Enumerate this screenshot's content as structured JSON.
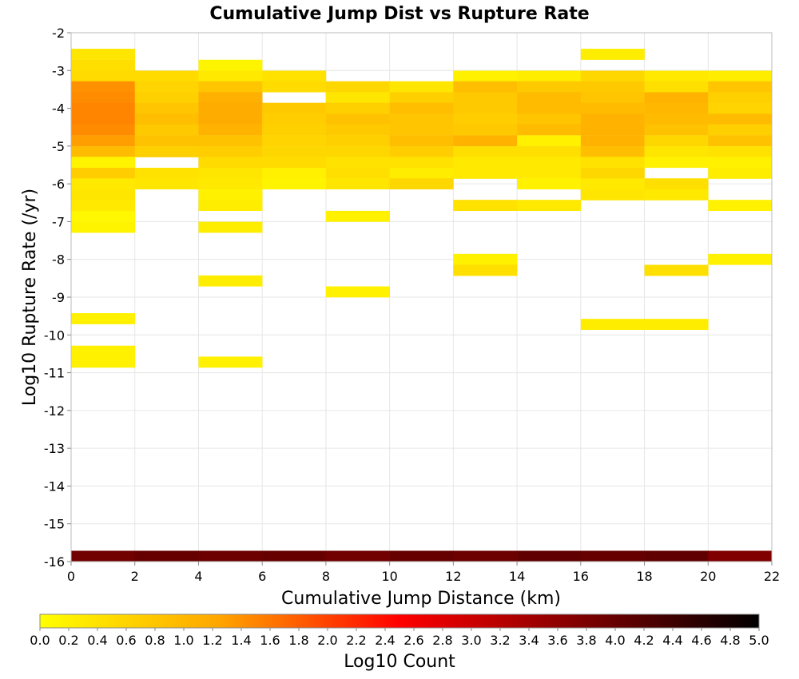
{
  "chart_data": {
    "type": "heatmap",
    "title": "Cumulative Jump Dist vs Rupture Rate",
    "xlabel": "Cumulative Jump Distance (km)",
    "ylabel": "Log10 Rupture Rate (/yr)",
    "xlim": [
      0,
      22
    ],
    "ylim": [
      -16,
      -2
    ],
    "x_ticks": [
      "0",
      "2",
      "4",
      "6",
      "8",
      "10",
      "12",
      "14",
      "16",
      "18",
      "20",
      "22"
    ],
    "y_ticks": [
      "-2",
      "-3",
      "-4",
      "-5",
      "-6",
      "-7",
      "-8",
      "-9",
      "-10",
      "-11",
      "-12",
      "-13",
      "-14",
      "-15",
      "-16"
    ],
    "grid": true,
    "x_bin_width": 2,
    "y_bin_height": 0.286,
    "colorbar": {
      "label": "Log10 Count",
      "range": [
        0.0,
        5.0
      ],
      "ticks": [
        "0.0",
        "0.2",
        "0.4",
        "0.6",
        "0.8",
        "1.0",
        "1.2",
        "1.4",
        "1.6",
        "1.8",
        "2.0",
        "2.2",
        "2.4",
        "2.6",
        "2.8",
        "3.0",
        "3.2",
        "3.4",
        "3.6",
        "3.8",
        "4.0",
        "4.2",
        "4.4",
        "4.6",
        "4.8",
        "5.0"
      ],
      "colors": [
        "#ffff00",
        "#ffa500",
        "#ff0000",
        "#800000",
        "#000000"
      ]
    },
    "cells": [
      {
        "x": 0,
        "y": -2.71,
        "v": 0.35
      },
      {
        "x": 0,
        "y": -3.0,
        "v": 0.45
      },
      {
        "x": 0,
        "y": -3.29,
        "v": 0.5
      },
      {
        "x": 0,
        "y": -3.57,
        "v": 1.4
      },
      {
        "x": 0,
        "y": -3.86,
        "v": 1.45
      },
      {
        "x": 0,
        "y": -4.14,
        "v": 1.5
      },
      {
        "x": 0,
        "y": -4.43,
        "v": 1.5
      },
      {
        "x": 0,
        "y": -4.71,
        "v": 1.45
      },
      {
        "x": 0,
        "y": -5.0,
        "v": 1.3
      },
      {
        "x": 0,
        "y": -5.29,
        "v": 0.95
      },
      {
        "x": 0,
        "y": -5.57,
        "v": 0.15
      },
      {
        "x": 0,
        "y": -5.86,
        "v": 0.7
      },
      {
        "x": 0,
        "y": -6.14,
        "v": 0.3
      },
      {
        "x": 0,
        "y": -6.43,
        "v": 0.35
      },
      {
        "x": 0,
        "y": -6.71,
        "v": 0.3
      },
      {
        "x": 0,
        "y": -7.0,
        "v": 0.1
      },
      {
        "x": 0,
        "y": -7.29,
        "v": 0.15
      },
      {
        "x": 0,
        "y": -9.71,
        "v": 0.2
      },
      {
        "x": 0,
        "y": -10.57,
        "v": 0.2
      },
      {
        "x": 0,
        "y": -10.86,
        "v": 0.2
      },
      {
        "x": 2,
        "y": -3.29,
        "v": 0.5
      },
      {
        "x": 2,
        "y": -3.57,
        "v": 0.6
      },
      {
        "x": 2,
        "y": -3.86,
        "v": 0.65
      },
      {
        "x": 2,
        "y": -4.14,
        "v": 0.8
      },
      {
        "x": 2,
        "y": -4.43,
        "v": 0.9
      },
      {
        "x": 2,
        "y": -4.71,
        "v": 0.75
      },
      {
        "x": 2,
        "y": -5.0,
        "v": 0.85
      },
      {
        "x": 2,
        "y": -5.29,
        "v": 0.65
      },
      {
        "x": 2,
        "y": -5.86,
        "v": 0.4
      },
      {
        "x": 2,
        "y": -6.14,
        "v": 0.35
      },
      {
        "x": 4,
        "y": -3.0,
        "v": 0.15
      },
      {
        "x": 4,
        "y": -3.29,
        "v": 0.3
      },
      {
        "x": 4,
        "y": -3.57,
        "v": 0.8
      },
      {
        "x": 4,
        "y": -3.86,
        "v": 1.1
      },
      {
        "x": 4,
        "y": -4.14,
        "v": 1.15
      },
      {
        "x": 4,
        "y": -4.43,
        "v": 1.15
      },
      {
        "x": 4,
        "y": -4.71,
        "v": 1.05
      },
      {
        "x": 4,
        "y": -5.0,
        "v": 0.85
      },
      {
        "x": 4,
        "y": -5.29,
        "v": 0.7
      },
      {
        "x": 4,
        "y": -5.57,
        "v": 0.5
      },
      {
        "x": 4,
        "y": -5.86,
        "v": 0.35
      },
      {
        "x": 4,
        "y": -6.14,
        "v": 0.3
      },
      {
        "x": 4,
        "y": -6.43,
        "v": 0.2
      },
      {
        "x": 4,
        "y": -6.71,
        "v": 0.25
      },
      {
        "x": 4,
        "y": -7.29,
        "v": 0.25
      },
      {
        "x": 4,
        "y": -8.71,
        "v": 0.25
      },
      {
        "x": 4,
        "y": -10.86,
        "v": 0.2
      },
      {
        "x": 6,
        "y": -3.29,
        "v": 0.4
      },
      {
        "x": 6,
        "y": -3.57,
        "v": 0.5
      },
      {
        "x": 6,
        "y": -4.14,
        "v": 0.75
      },
      {
        "x": 6,
        "y": -4.43,
        "v": 0.7
      },
      {
        "x": 6,
        "y": -4.71,
        "v": 0.65
      },
      {
        "x": 6,
        "y": -5.0,
        "v": 0.6
      },
      {
        "x": 6,
        "y": -5.29,
        "v": 0.55
      },
      {
        "x": 6,
        "y": -5.57,
        "v": 0.5
      },
      {
        "x": 6,
        "y": -5.86,
        "v": 0.2
      },
      {
        "x": 6,
        "y": -6.14,
        "v": 0.15
      },
      {
        "x": 8,
        "y": -3.57,
        "v": 0.55
      },
      {
        "x": 8,
        "y": -3.86,
        "v": 0.35
      },
      {
        "x": 8,
        "y": -4.14,
        "v": 0.65
      },
      {
        "x": 8,
        "y": -4.43,
        "v": 0.85
      },
      {
        "x": 8,
        "y": -4.71,
        "v": 0.75
      },
      {
        "x": 8,
        "y": -5.0,
        "v": 0.65
      },
      {
        "x": 8,
        "y": -5.29,
        "v": 0.55
      },
      {
        "x": 8,
        "y": -5.57,
        "v": 0.4
      },
      {
        "x": 8,
        "y": -5.86,
        "v": 0.45
      },
      {
        "x": 8,
        "y": -6.14,
        "v": 0.35
      },
      {
        "x": 8,
        "y": -7.0,
        "v": 0.2
      },
      {
        "x": 8,
        "y": -9.0,
        "v": 0.2
      },
      {
        "x": 10,
        "y": -3.57,
        "v": 0.35
      },
      {
        "x": 10,
        "y": -3.86,
        "v": 0.65
      },
      {
        "x": 10,
        "y": -4.14,
        "v": 0.9
      },
      {
        "x": 10,
        "y": -4.43,
        "v": 0.8
      },
      {
        "x": 10,
        "y": -4.71,
        "v": 0.8
      },
      {
        "x": 10,
        "y": -5.0,
        "v": 0.9
      },
      {
        "x": 10,
        "y": -5.29,
        "v": 0.7
      },
      {
        "x": 10,
        "y": -5.57,
        "v": 0.4
      },
      {
        "x": 10,
        "y": -5.86,
        "v": 0.25
      },
      {
        "x": 10,
        "y": -6.14,
        "v": 0.55
      },
      {
        "x": 12,
        "y": -3.29,
        "v": 0.2
      },
      {
        "x": 12,
        "y": -3.57,
        "v": 0.9
      },
      {
        "x": 12,
        "y": -3.86,
        "v": 0.75
      },
      {
        "x": 12,
        "y": -4.14,
        "v": 0.75
      },
      {
        "x": 12,
        "y": -4.43,
        "v": 0.7
      },
      {
        "x": 12,
        "y": -4.71,
        "v": 0.75
      },
      {
        "x": 12,
        "y": -5.0,
        "v": 1.05
      },
      {
        "x": 12,
        "y": -5.29,
        "v": 0.45
      },
      {
        "x": 12,
        "y": -5.57,
        "v": 0.3
      },
      {
        "x": 12,
        "y": -5.86,
        "v": 0.3
      },
      {
        "x": 12,
        "y": -6.71,
        "v": 0.4
      },
      {
        "x": 12,
        "y": -8.14,
        "v": 0.2
      },
      {
        "x": 12,
        "y": -8.43,
        "v": 0.45
      },
      {
        "x": 14,
        "y": -3.29,
        "v": 0.25
      },
      {
        "x": 14,
        "y": -3.57,
        "v": 0.75
      },
      {
        "x": 14,
        "y": -3.86,
        "v": 0.95
      },
      {
        "x": 14,
        "y": -4.14,
        "v": 0.95
      },
      {
        "x": 14,
        "y": -4.43,
        "v": 0.8
      },
      {
        "x": 14,
        "y": -4.71,
        "v": 0.95
      },
      {
        "x": 14,
        "y": -5.0,
        "v": 0.2
      },
      {
        "x": 14,
        "y": -5.29,
        "v": 0.45
      },
      {
        "x": 14,
        "y": -5.57,
        "v": 0.3
      },
      {
        "x": 14,
        "y": -5.86,
        "v": 0.3
      },
      {
        "x": 14,
        "y": -6.14,
        "v": 0.2
      },
      {
        "x": 14,
        "y": -6.71,
        "v": 0.3
      },
      {
        "x": 16,
        "y": -2.71,
        "v": 0.25
      },
      {
        "x": 16,
        "y": -3.29,
        "v": 0.55
      },
      {
        "x": 16,
        "y": -3.57,
        "v": 0.75
      },
      {
        "x": 16,
        "y": -3.86,
        "v": 0.8
      },
      {
        "x": 16,
        "y": -4.14,
        "v": 0.95
      },
      {
        "x": 16,
        "y": -4.43,
        "v": 1.05
      },
      {
        "x": 16,
        "y": -4.71,
        "v": 1.05
      },
      {
        "x": 16,
        "y": -5.0,
        "v": 1.05
      },
      {
        "x": 16,
        "y": -5.29,
        "v": 0.9
      },
      {
        "x": 16,
        "y": -5.57,
        "v": 0.4
      },
      {
        "x": 16,
        "y": -5.86,
        "v": 0.55
      },
      {
        "x": 16,
        "y": -6.14,
        "v": 0.3
      },
      {
        "x": 16,
        "y": -6.43,
        "v": 0.35
      },
      {
        "x": 16,
        "y": -9.86,
        "v": 0.25
      },
      {
        "x": 18,
        "y": -3.29,
        "v": 0.3
      },
      {
        "x": 18,
        "y": -3.57,
        "v": 0.45
      },
      {
        "x": 18,
        "y": -3.86,
        "v": 1.05
      },
      {
        "x": 18,
        "y": -4.14,
        "v": 1.0
      },
      {
        "x": 18,
        "y": -4.43,
        "v": 0.95
      },
      {
        "x": 18,
        "y": -4.71,
        "v": 0.85
      },
      {
        "x": 18,
        "y": -5.0,
        "v": 0.55
      },
      {
        "x": 18,
        "y": -5.29,
        "v": 0.35
      },
      {
        "x": 18,
        "y": -5.57,
        "v": 0.2
      },
      {
        "x": 18,
        "y": -6.14,
        "v": 0.45
      },
      {
        "x": 18,
        "y": -6.43,
        "v": 0.3
      },
      {
        "x": 18,
        "y": -8.43,
        "v": 0.45
      },
      {
        "x": 18,
        "y": -9.86,
        "v": 0.25
      },
      {
        "x": 20,
        "y": -3.29,
        "v": 0.25
      },
      {
        "x": 20,
        "y": -3.57,
        "v": 0.8
      },
      {
        "x": 20,
        "y": -3.86,
        "v": 0.65
      },
      {
        "x": 20,
        "y": -4.14,
        "v": 0.6
      },
      {
        "x": 20,
        "y": -4.43,
        "v": 0.95
      },
      {
        "x": 20,
        "y": -4.71,
        "v": 0.65
      },
      {
        "x": 20,
        "y": -5.0,
        "v": 0.85
      },
      {
        "x": 20,
        "y": -5.29,
        "v": 0.4
      },
      {
        "x": 20,
        "y": -5.57,
        "v": 0.2
      },
      {
        "x": 20,
        "y": -5.86,
        "v": 0.25
      },
      {
        "x": 20,
        "y": -6.71,
        "v": 0.2
      },
      {
        "x": 20,
        "y": -8.14,
        "v": 0.2
      },
      {
        "x": 0,
        "y": -16.0,
        "v": 3.9
      },
      {
        "x": 2,
        "y": -16.0,
        "v": 4.0
      },
      {
        "x": 4,
        "y": -16.0,
        "v": 3.95
      },
      {
        "x": 6,
        "y": -16.0,
        "v": 4.0
      },
      {
        "x": 8,
        "y": -16.0,
        "v": 3.9
      },
      {
        "x": 10,
        "y": -16.0,
        "v": 4.0
      },
      {
        "x": 12,
        "y": -16.0,
        "v": 3.95
      },
      {
        "x": 14,
        "y": -16.0,
        "v": 4.05
      },
      {
        "x": 16,
        "y": -16.0,
        "v": 4.0
      },
      {
        "x": 18,
        "y": -16.0,
        "v": 4.05
      },
      {
        "x": 20,
        "y": -16.0,
        "v": 3.75
      }
    ]
  }
}
